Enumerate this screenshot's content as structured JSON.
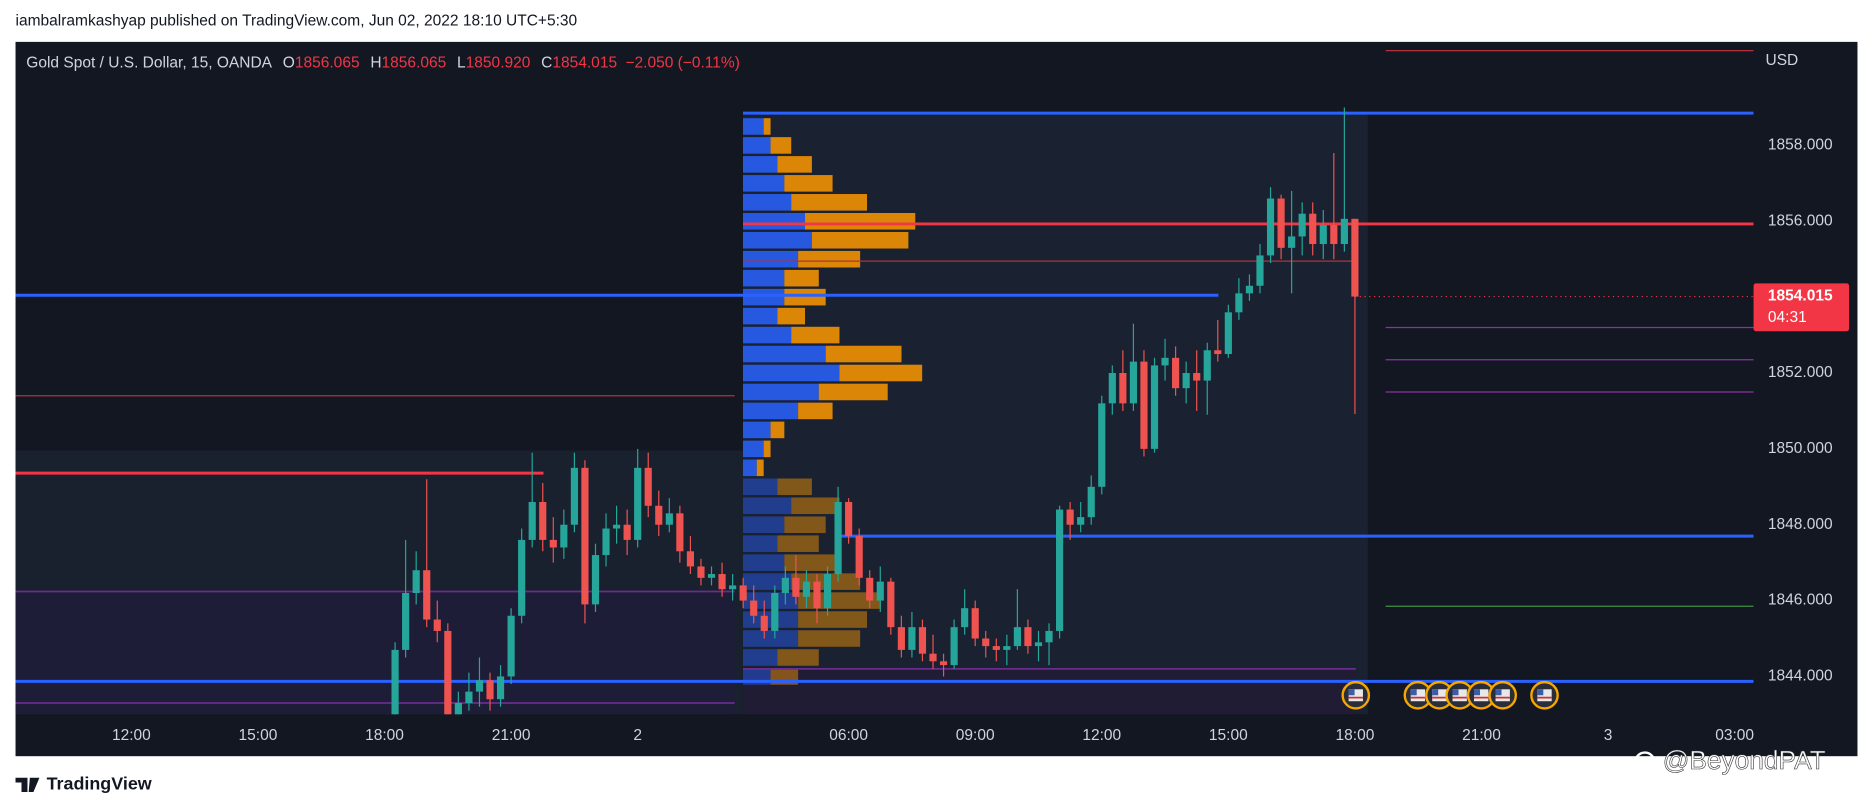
{
  "header": "iambalramkashyap published on TradingView.com, Jun 02, 2022 18:10 UTC+5:30",
  "footer_logo": "TradingView",
  "watermark": "@BeyondPAT",
  "chart_data": {
    "type": "candlestick",
    "title": "Gold Spot / U.S. Dollar, 15, OANDA",
    "ohlc_legend": [
      {
        "key": "O",
        "text": "1856.065"
      },
      {
        "key": "H",
        "text": "1856.065"
      },
      {
        "key": "L",
        "text": "1850.920"
      },
      {
        "key": "C",
        "text": "1854.015"
      }
    ],
    "change_text": "−2.050 (−0.11%)",
    "currency": "USD",
    "countdown": "04:31",
    "up_color": "#26a69a",
    "down_color": "#ef5350",
    "grid": false,
    "ylim": [
      1843.0,
      1860.73
    ],
    "yticks": [
      {
        "value": 1844,
        "label": "1844.000"
      },
      {
        "value": 1846,
        "label": "1846.000"
      },
      {
        "value": 1848,
        "label": "1848.000"
      },
      {
        "value": 1850,
        "label": "1850.000"
      },
      {
        "value": 1852,
        "label": "1852.000"
      },
      {
        "value": 1854,
        "label": "1854.000"
      },
      {
        "value": 1856,
        "label": "1856.000"
      },
      {
        "value": 1858,
        "label": "1858.000"
      }
    ],
    "categories": [
      "12:00",
      null,
      null,
      null,
      null,
      null,
      null,
      null,
      null,
      null,
      null,
      null,
      "15:00",
      null,
      null,
      null,
      null,
      null,
      null,
      null,
      null,
      null,
      null,
      null,
      "18:00",
      null,
      null,
      null,
      null,
      null,
      null,
      null,
      null,
      null,
      null,
      null,
      "21:00",
      null,
      null,
      null,
      null,
      null,
      null,
      null,
      null,
      null,
      null,
      null,
      "2",
      null,
      null,
      null,
      null,
      null,
      null,
      null,
      null,
      null,
      null,
      null,
      null,
      null,
      null,
      null,
      null,
      null,
      null,
      null,
      "06:00",
      null,
      null,
      null,
      null,
      null,
      null,
      null,
      null,
      null,
      null,
      null,
      "09:00",
      null,
      null,
      null,
      null,
      null,
      null,
      null,
      null,
      null,
      null,
      null,
      "12:00",
      null,
      null,
      null,
      null,
      null,
      null,
      null,
      null,
      null,
      null,
      null,
      "15:00",
      null,
      null,
      null,
      null,
      null,
      null,
      null,
      null,
      null,
      null,
      null,
      "18:00",
      null,
      null,
      null,
      null,
      null,
      null,
      null,
      null,
      null,
      null,
      null,
      "21:00",
      null,
      null,
      null,
      null,
      null,
      null,
      null,
      null,
      null,
      null,
      null,
      "3",
      null,
      null,
      null,
      null,
      null,
      null,
      null,
      null,
      null,
      null,
      null,
      "03:00"
    ],
    "ohlc": [
      null,
      null,
      null,
      null,
      null,
      null,
      null,
      null,
      null,
      null,
      null,
      null,
      null,
      null,
      null,
      null,
      null,
      null,
      null,
      null,
      null,
      null,
      null,
      null,
      null,
      [
        1843.0,
        1844.9,
        1842.9,
        1844.7
      ],
      [
        1844.7,
        1847.6,
        1844.5,
        1846.2
      ],
      [
        1846.2,
        1847.3,
        1845.9,
        1846.8
      ],
      [
        1846.8,
        1849.2,
        1845.3,
        1845.5
      ],
      [
        1845.5,
        1846.0,
        1844.9,
        1845.2
      ],
      [
        1845.2,
        1845.4,
        1842.9,
        1843.0
      ],
      [
        1843.0,
        1843.6,
        1842.9,
        1843.3
      ],
      [
        1843.3,
        1844.1,
        1843.1,
        1843.6
      ],
      [
        1843.6,
        1844.5,
        1843.2,
        1843.9
      ],
      [
        1843.9,
        1844.1,
        1843.1,
        1843.4
      ],
      [
        1843.4,
        1844.3,
        1843.2,
        1844.0
      ],
      [
        1844.0,
        1845.8,
        1843.8,
        1845.6
      ],
      [
        1845.6,
        1847.9,
        1845.4,
        1847.6
      ],
      [
        1847.6,
        1849.9,
        1847.4,
        1848.6
      ],
      [
        1848.6,
        1849.1,
        1847.3,
        1847.6
      ],
      [
        1847.6,
        1848.2,
        1847.0,
        1847.4
      ],
      [
        1847.4,
        1848.4,
        1847.1,
        1848.0
      ],
      [
        1848.0,
        1849.9,
        1847.8,
        1849.5
      ],
      [
        1849.5,
        1849.7,
        1845.4,
        1845.9
      ],
      [
        1845.9,
        1847.5,
        1845.7,
        1847.2
      ],
      [
        1847.2,
        1848.3,
        1846.9,
        1847.9
      ],
      [
        1847.9,
        1848.5,
        1847.5,
        1848.0
      ],
      [
        1848.0,
        1848.4,
        1847.2,
        1847.6
      ],
      [
        1847.6,
        1850.0,
        1847.4,
        1849.5
      ],
      [
        1849.5,
        1849.9,
        1848.2,
        1848.5
      ],
      [
        1848.5,
        1848.9,
        1847.7,
        1848.0
      ],
      [
        1848.0,
        1848.7,
        1847.8,
        1848.3
      ],
      [
        1848.3,
        1848.5,
        1847.0,
        1847.3
      ],
      [
        1847.3,
        1847.7,
        1846.7,
        1846.9
      ],
      [
        1846.9,
        1847.1,
        1846.4,
        1846.6
      ],
      [
        1846.6,
        1846.9,
        1846.4,
        1846.7
      ],
      [
        1846.7,
        1847.0,
        1846.1,
        1846.3
      ],
      [
        1846.3,
        1846.7,
        1846.0,
        1846.4
      ],
      [
        1846.4,
        1846.6,
        1845.8,
        1846.0
      ],
      [
        1846.0,
        1846.4,
        1845.4,
        1845.6
      ],
      [
        1845.6,
        1846.0,
        1845.0,
        1845.2
      ],
      [
        1845.2,
        1846.4,
        1845.0,
        1846.2
      ],
      [
        1846.2,
        1846.9,
        1845.9,
        1846.6
      ],
      [
        1846.6,
        1847.2,
        1845.9,
        1846.1
      ],
      [
        1846.1,
        1846.8,
        1845.8,
        1846.5
      ],
      [
        1846.5,
        1846.7,
        1845.4,
        1845.8
      ],
      [
        1845.8,
        1846.9,
        1845.6,
        1846.7
      ],
      [
        1846.7,
        1849.0,
        1846.5,
        1848.6
      ],
      [
        1848.6,
        1848.7,
        1847.5,
        1847.7
      ],
      [
        1847.7,
        1847.9,
        1846.4,
        1846.6
      ],
      [
        1846.6,
        1846.8,
        1845.8,
        1846.0
      ],
      [
        1846.0,
        1846.9,
        1845.7,
        1846.5
      ],
      [
        1846.5,
        1846.6,
        1845.1,
        1845.3
      ],
      [
        1845.3,
        1845.6,
        1844.5,
        1844.7
      ],
      [
        1844.7,
        1845.7,
        1844.5,
        1845.3
      ],
      [
        1845.3,
        1845.5,
        1844.4,
        1844.6
      ],
      [
        1844.6,
        1845.1,
        1844.2,
        1844.4
      ],
      [
        1844.4,
        1844.6,
        1844.0,
        1844.3
      ],
      [
        1844.3,
        1845.5,
        1844.2,
        1845.3
      ],
      [
        1845.3,
        1846.3,
        1845.1,
        1845.8
      ],
      [
        1845.8,
        1846.0,
        1844.8,
        1845.0
      ],
      [
        1845.0,
        1845.2,
        1844.5,
        1844.8
      ],
      [
        1844.8,
        1845.0,
        1844.4,
        1844.7
      ],
      [
        1844.7,
        1845.1,
        1844.3,
        1844.8
      ],
      [
        1844.8,
        1846.3,
        1844.7,
        1845.3
      ],
      [
        1845.3,
        1845.5,
        1844.6,
        1844.8
      ],
      [
        1844.8,
        1845.2,
        1844.4,
        1844.9
      ],
      [
        1844.9,
        1845.4,
        1844.3,
        1845.2
      ],
      [
        1845.2,
        1848.5,
        1845.0,
        1848.4
      ],
      [
        1848.4,
        1848.6,
        1847.6,
        1848.0
      ],
      [
        1848.0,
        1848.6,
        1847.8,
        1848.2
      ],
      [
        1848.2,
        1849.3,
        1848.0,
        1849.0
      ],
      [
        1849.0,
        1851.4,
        1848.8,
        1851.2
      ],
      [
        1851.2,
        1852.2,
        1850.9,
        1852.0
      ],
      [
        1852.0,
        1852.6,
        1851.0,
        1851.2
      ],
      [
        1851.2,
        1853.3,
        1851.0,
        1852.3
      ],
      [
        1852.3,
        1852.6,
        1849.8,
        1850.0
      ],
      [
        1850.0,
        1852.4,
        1849.9,
        1852.2
      ],
      [
        1852.2,
        1852.9,
        1851.8,
        1852.4
      ],
      [
        1852.4,
        1852.7,
        1851.4,
        1851.6
      ],
      [
        1851.6,
        1852.3,
        1851.2,
        1852.0
      ],
      [
        1852.0,
        1852.6,
        1851.0,
        1851.8
      ],
      [
        1851.8,
        1852.8,
        1850.9,
        1852.6
      ],
      [
        1852.6,
        1853.4,
        1852.3,
        1852.5
      ],
      [
        1852.5,
        1853.8,
        1852.4,
        1853.6
      ],
      [
        1853.6,
        1854.5,
        1853.4,
        1854.1
      ],
      [
        1854.1,
        1854.6,
        1853.9,
        1854.3
      ],
      [
        1854.3,
        1855.4,
        1854.1,
        1855.1
      ],
      [
        1855.1,
        1856.9,
        1854.9,
        1856.6
      ],
      [
        1856.6,
        1856.7,
        1855.0,
        1855.3
      ],
      [
        1855.3,
        1856.8,
        1854.1,
        1855.6
      ],
      [
        1855.6,
        1856.5,
        1855.1,
        1856.2
      ],
      [
        1856.2,
        1856.5,
        1855.1,
        1855.4
      ],
      [
        1855.4,
        1856.3,
        1855.0,
        1855.9
      ],
      [
        1855.9,
        1857.8,
        1855.0,
        1855.4
      ],
      [
        1855.4,
        1859.0,
        1855.2,
        1856.065
      ],
      [
        1856.065,
        1856.065,
        1850.92,
        1854.015
      ],
      null,
      null,
      null,
      null,
      null,
      null,
      null,
      null,
      null,
      null,
      null,
      null,
      null,
      null,
      null,
      null,
      null,
      null,
      null,
      null,
      null,
      null,
      null,
      null,
      null,
      null,
      null,
      null,
      null,
      null,
      null,
      null,
      null,
      null,
      null,
      null
    ],
    "levels": [
      {
        "value": 1858.85,
        "color": "#2962ff"
      },
      {
        "value": 1855.93,
        "color": "#f23645"
      },
      {
        "value": 1854.05,
        "color": "#2962ff"
      },
      {
        "value": 1847.7,
        "color": "#2962ff"
      },
      {
        "value": 1843.87,
        "color": "#2962ff"
      },
      {
        "value": 1849.36,
        "color": "#f23645"
      },
      {
        "value": 1860.5,
        "color": "#b2323c"
      },
      {
        "value": 1853.2,
        "color": "#8e2fa8"
      },
      {
        "value": 1852.35,
        "color": "#8e2fa8"
      },
      {
        "value": 1851.5,
        "color": "#8e2fa8"
      },
      {
        "value": 1845.85,
        "color": "#3f8f46"
      },
      {
        "value": 1851.4,
        "color": "#b2323c"
      },
      {
        "value": 1854.95,
        "color": "#b2323c"
      },
      {
        "value": 1846.24,
        "color": "#6a2c8f"
      },
      {
        "value": 1844.2,
        "color": "#6a2c8f"
      },
      {
        "value": 1843.3,
        "color": "#6a2c8f"
      }
    ],
    "volume_profile": {
      "buy_color": "#2962ff",
      "sell_color": "#ff9800",
      "prices": [
        1844.0,
        1844.5,
        1845.0,
        1845.5,
        1846.0,
        1846.5,
        1847.0,
        1847.5,
        1848.0,
        1848.5,
        1849.0,
        1849.5,
        1850.0,
        1850.5,
        1851.0,
        1851.5,
        1852.0,
        1852.5,
        1853.0,
        1853.5,
        1854.0,
        1854.5,
        1855.0,
        1855.5,
        1856.0,
        1856.5,
        1857.0,
        1857.5,
        1858.0,
        1858.5
      ],
      "buy": [
        20,
        25,
        40,
        40,
        40,
        35,
        30,
        25,
        30,
        35,
        25,
        10,
        15,
        20,
        40,
        55,
        70,
        60,
        35,
        25,
        30,
        30,
        40,
        50,
        45,
        35,
        30,
        25,
        20,
        15
      ],
      "sell": [
        20,
        30,
        45,
        50,
        60,
        50,
        40,
        30,
        30,
        35,
        25,
        5,
        5,
        10,
        25,
        50,
        60,
        55,
        35,
        20,
        30,
        25,
        45,
        70,
        80,
        55,
        35,
        25,
        15,
        5
      ]
    }
  }
}
